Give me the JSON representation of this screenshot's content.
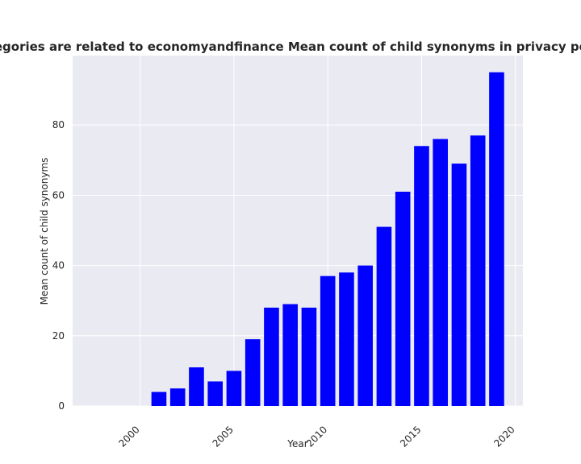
{
  "chart_data": {
    "type": "bar",
    "title": "categories are related to economyandfinance Mean count of child synonyms in privacy policies",
    "xlabel": "Year",
    "ylabel": "Mean count of child synonyms",
    "x": [
      1997,
      1998,
      1999,
      2000,
      2001,
      2002,
      2003,
      2004,
      2005,
      2006,
      2007,
      2008,
      2009,
      2010,
      2011,
      2012,
      2013,
      2014,
      2015,
      2016,
      2017,
      2018,
      2019
    ],
    "values": [
      0,
      0,
      0,
      0,
      4,
      5,
      11,
      7,
      10,
      19,
      28,
      29,
      28,
      37,
      38,
      40,
      51,
      61,
      74,
      76,
      69,
      77,
      95
    ],
    "xlim": [
      1996.4,
      2020.4
    ],
    "ylim": [
      0,
      99.75
    ],
    "xticks": [
      2000,
      2005,
      2010,
      2015,
      2020
    ],
    "yticks": [
      0,
      20,
      40,
      60,
      80
    ],
    "bar_color": "#0000ff",
    "background_color": "#eaeaf2",
    "grid_color": "#ffffff",
    "grid": true,
    "legend": false
  }
}
